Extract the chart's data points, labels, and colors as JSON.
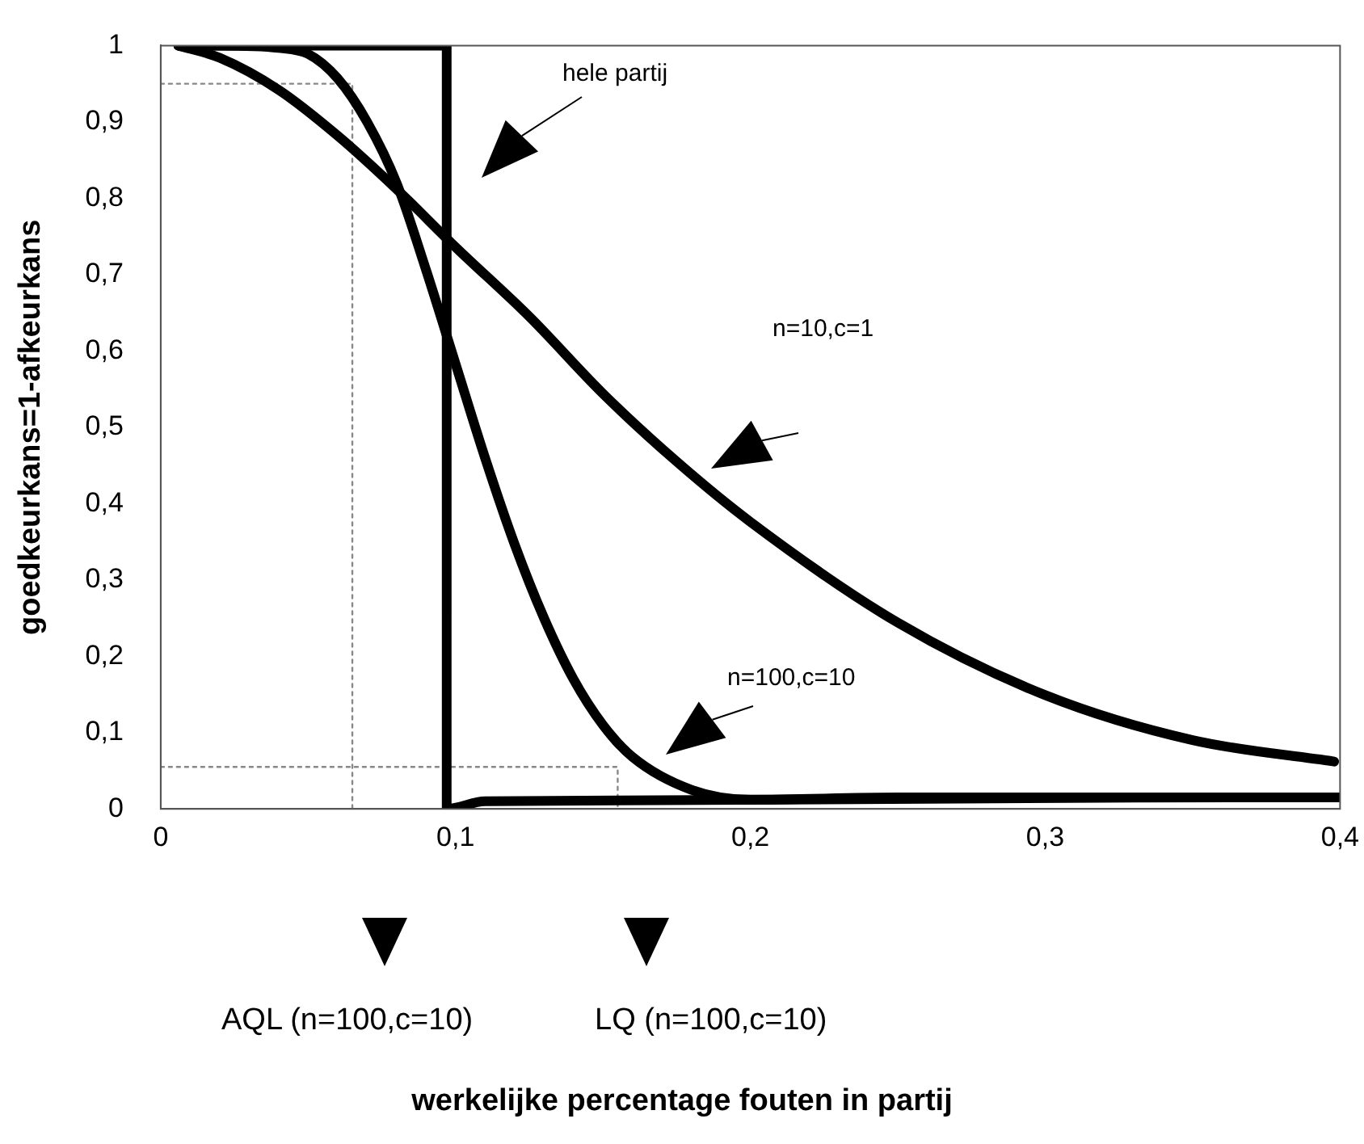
{
  "chart_data": {
    "type": "line",
    "ylabel": "goedkeurkans=1-afkeurkans",
    "xlim": [
      0,
      0.4
    ],
    "xticks": [
      0,
      {
        "value": 0.1,
        "label": "0,1"
      },
      {
        "value": 0.2,
        "label": "0,2"
      },
      {
        "value": 0.3,
        "label": "0,3"
      },
      {
        "value": 0.4,
        "label": "0,4"
      }
    ],
    "ylim": [
      0,
      1
    ],
    "yticks": [
      0,
      {
        "value": 0.1,
        "label": "0,1"
      },
      {
        "value": 0.2,
        "label": "0,2"
      },
      {
        "value": 0.3,
        "label": "0,3"
      },
      {
        "value": 0.4,
        "label": "0,4"
      },
      {
        "value": 0.5,
        "label": "0,5"
      },
      {
        "value": 0.6,
        "label": "0,6"
      },
      {
        "value": 0.7,
        "label": "0,7"
      },
      {
        "value": 0.8,
        "label": "0,8"
      },
      {
        "value": 0.9,
        "label": "0,9"
      },
      1
    ],
    "grid": false,
    "legend": false,
    "marker": "none",
    "line_style": "solid",
    "series": [
      {
        "color": "#000000",
        "x": [
          0.006,
          0.02,
          0.04,
          0.06,
          0.08,
          0.1,
          0.125,
          0.15,
          0.175,
          0.2,
          0.25,
          0.3,
          0.35,
          0.398
        ],
        "values": [
          1,
          0.984,
          0.942,
          0.882,
          0.812,
          0.736,
          0.645,
          0.544,
          0.455,
          0.376,
          0.244,
          0.149,
          0.09,
          0.062
        ]
      },
      {
        "color": "#000000",
        "x": [
          0.006,
          0.02,
          0.04,
          0.05,
          0.06,
          0.07,
          0.08,
          0.09,
          0.1,
          0.11,
          0.12,
          0.13,
          0.14,
          0.15,
          0.16,
          0.18,
          0.2,
          0.25,
          0.4
        ],
        "values": [
          1,
          1,
          0.997,
          0.989,
          0.957,
          0.9,
          0.82,
          0.706,
          0.583,
          0.46,
          0.347,
          0.25,
          0.17,
          0.11,
          0.068,
          0.025,
          0.012,
          0.015,
          0.015
        ]
      },
      {
        "color": "#000000",
        "x": [
          0.006,
          0.09,
          0.097,
          0.097,
          0.11,
          0.4
        ],
        "values": [
          1,
          1,
          1,
          0,
          0.01,
          0.015
        ]
      },
      {
        "color": "#888888",
        "line_style": "dotted",
        "x": [
          0,
          0.065,
          0.065
        ],
        "values": [
          0.95,
          0.95,
          0
        ]
      },
      {
        "color": "#888888",
        "line_style": "dotted",
        "x": [
          0,
          0.155,
          0.155
        ],
        "values": [
          0.055,
          0.055,
          0
        ]
      }
    ],
    "annotations": [
      "hele partij",
      "n=10,c=1",
      "n=100,c=10",
      "AQL (n=100,c=10)",
      "LQ (n=100,c=10)",
      "werkelijke percentage fouten in partij"
    ]
  }
}
